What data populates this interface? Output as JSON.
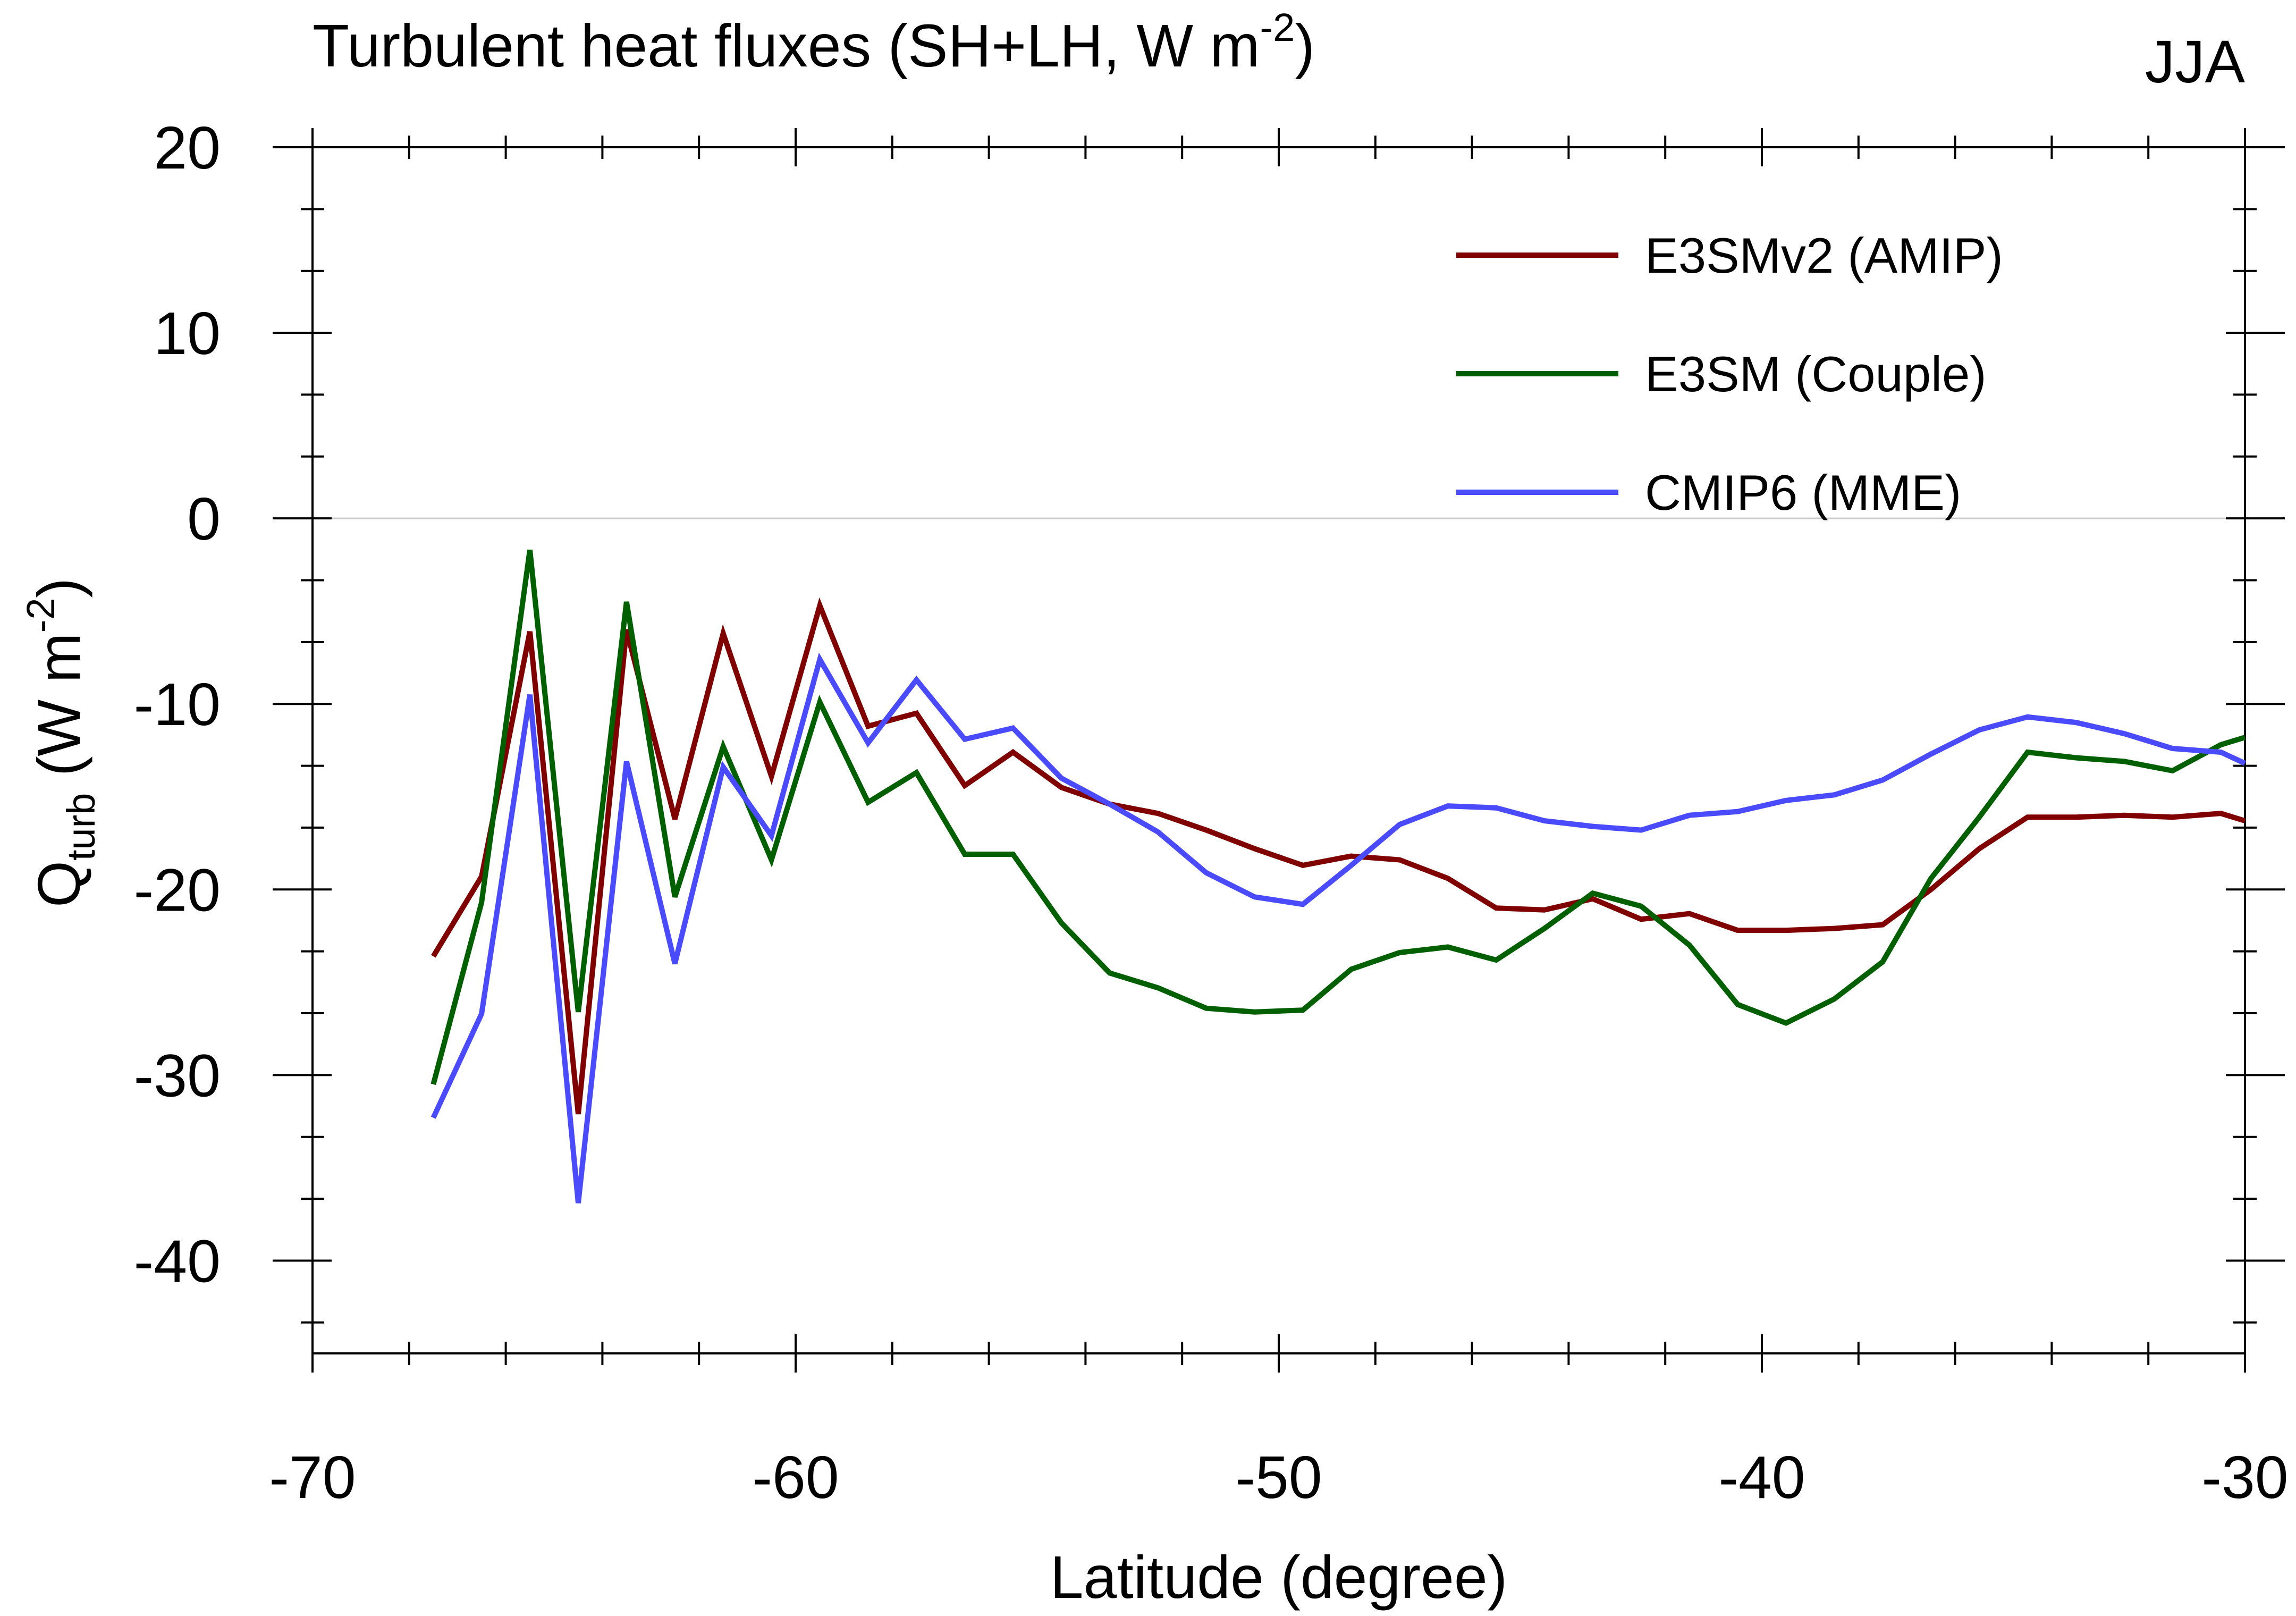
{
  "chart_data": {
    "type": "line",
    "title_main": "Turbulent heat fluxes (SH+LH, W m",
    "title_sup": "-2",
    "title_end": ")",
    "season": "JJA",
    "xlabel": "Latitude (degree)",
    "ylabel_q": "Q",
    "ylabel_sub": "turb",
    "ylabel_unit": " (W m",
    "ylabel_sup": "-2",
    "ylabel_end": ")",
    "xlim": [
      -70,
      -30
    ],
    "ylim": [
      -45,
      20
    ],
    "x_ticks": [
      -70,
      -60,
      -50,
      -40,
      -30
    ],
    "x_tick_labels": [
      "-70",
      "-60",
      "-50",
      "-40",
      "-30"
    ],
    "y_ticks": [
      20,
      10,
      0,
      -10,
      -20,
      -30,
      -40
    ],
    "y_tick_labels": [
      "20",
      "10",
      "0",
      "-10",
      "-20",
      "-30",
      "-40"
    ],
    "x_minor_step": 2,
    "y_minor_step": 3.333,
    "zero_line": true,
    "legend_position": "top-right",
    "x": [
      -67.5,
      -66.5,
      -65.5,
      -64.5,
      -63.5,
      -62.5,
      -61.5,
      -60.5,
      -59.5,
      -58.5,
      -57.5,
      -56.5,
      -55.5,
      -54.5,
      -53.5,
      -52.5,
      -51.5,
      -50.5,
      -49.5,
      -48.5,
      -47.5,
      -46.5,
      -45.5,
      -44.5,
      -43.5,
      -42.5,
      -41.5,
      -40.5,
      -39.5,
      -38.5,
      -37.5,
      -36.5,
      -35.5,
      -34.5,
      -33.5,
      -32.5,
      -31.5,
      -30.5,
      -30
    ],
    "series": [
      {
        "name": "E3SMv2 (AMIP)",
        "color": "#800000",
        "values": [
          -23.6,
          -19.3,
          -6.1,
          -32.1,
          -6.0,
          -16.2,
          -6.2,
          -13.9,
          -4.7,
          -11.2,
          -10.5,
          -14.4,
          -12.6,
          -14.5,
          -15.4,
          -15.9,
          -16.8,
          -17.8,
          -18.7,
          -18.2,
          -18.4,
          -19.4,
          -21.0,
          -21.1,
          -20.5,
          -21.6,
          -21.3,
          -22.2,
          -22.2,
          -22.1,
          -21.9,
          -20.0,
          -17.8,
          -16.1,
          -16.1,
          -16.0,
          -16.1,
          -15.9,
          -16.3
        ]
      },
      {
        "name": "E3SM (Couple)",
        "color": "#006000",
        "values": [
          -30.5,
          -20.7,
          -1.7,
          -26.6,
          -4.5,
          -20.4,
          -12.3,
          -18.4,
          -9.9,
          -15.3,
          -13.7,
          -18.1,
          -18.1,
          -21.8,
          -24.5,
          -25.3,
          -26.4,
          -26.6,
          -26.5,
          -24.3,
          -23.4,
          -23.1,
          -23.8,
          -22.1,
          -20.2,
          -20.9,
          -23.0,
          -26.2,
          -27.2,
          -25.9,
          -23.9,
          -19.4,
          -16.1,
          -12.6,
          -12.9,
          -13.1,
          -13.6,
          -12.2,
          -11.8
        ]
      },
      {
        "name": "CMIP6 (MME)",
        "color": "#4a4aff",
        "values": [
          -32.3,
          -26.7,
          -9.5,
          -36.9,
          -13.1,
          -24.0,
          -13.4,
          -17.1,
          -7.6,
          -12.1,
          -8.7,
          -11.9,
          -11.3,
          -14.0,
          -15.4,
          -16.9,
          -19.1,
          -20.4,
          -20.8,
          -18.7,
          -16.5,
          -15.5,
          -15.6,
          -16.3,
          -16.6,
          -16.8,
          -16.0,
          -15.8,
          -15.2,
          -14.9,
          -14.1,
          -12.7,
          -11.4,
          -10.7,
          -11.0,
          -11.6,
          -12.4,
          -12.6,
          -13.2
        ]
      }
    ]
  }
}
